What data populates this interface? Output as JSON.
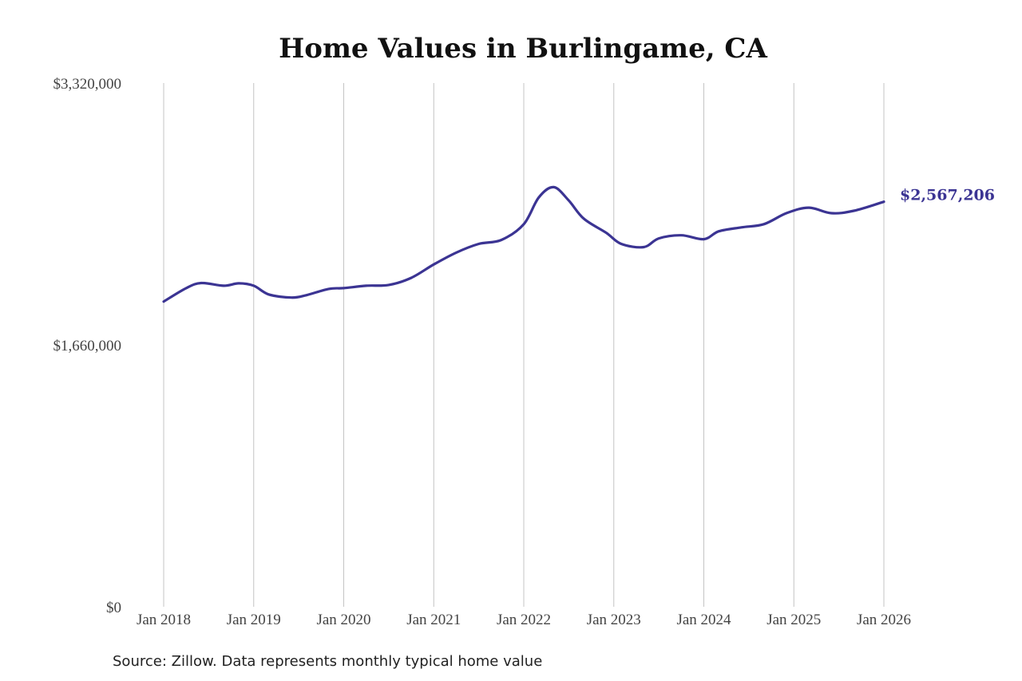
{
  "chart_data": {
    "type": "line",
    "title": "Home Values in Burlingame, CA",
    "xlabel": "",
    "ylabel": "",
    "ylim": [
      0,
      3320000
    ],
    "y_ticks": [
      "$3,320,000",
      "$1,660,000",
      "$0"
    ],
    "x_ticks": [
      "Jan 2018",
      "Jan 2019",
      "Jan 2020",
      "Jan 2021",
      "Jan 2022",
      "Jan 2023",
      "Jan 2024",
      "Jan 2025",
      "Jan 2026"
    ],
    "grid": "vertical",
    "end_label": "$2,567,206",
    "x": [
      "2018-01",
      "2018-04",
      "2018-06",
      "2018-09",
      "2018-11",
      "2019-01",
      "2019-03",
      "2019-06",
      "2019-08",
      "2019-11",
      "2020-01",
      "2020-04",
      "2020-07",
      "2020-10",
      "2021-01",
      "2021-04",
      "2021-07",
      "2021-10",
      "2022-01",
      "2022-03",
      "2022-05",
      "2022-07",
      "2022-09",
      "2022-12",
      "2023-02",
      "2023-05",
      "2023-07",
      "2023-10",
      "2024-01",
      "2024-03",
      "2024-06",
      "2024-09",
      "2024-12",
      "2025-03",
      "2025-06",
      "2025-09",
      "2026-01"
    ],
    "series": [
      {
        "values": [
          1935000,
          2020000,
          2052000,
          2035000,
          2050000,
          2035000,
          1980000,
          1960000,
          1975000,
          2015000,
          2020000,
          2035000,
          2040000,
          2085000,
          2170000,
          2245000,
          2300000,
          2325000,
          2425000,
          2595000,
          2660000,
          2575000,
          2460000,
          2370000,
          2300000,
          2280000,
          2335000,
          2355000,
          2330000,
          2380000,
          2405000,
          2425000,
          2495000,
          2530000,
          2495000,
          2510000,
          2567206
        ]
      }
    ]
  },
  "colors": {
    "line": "#3b3493",
    "end_label": "#3b3493",
    "grid": "#c4c4c4"
  },
  "footer": {
    "source": "Source: Zillow. Data represents monthly typical home value"
  }
}
